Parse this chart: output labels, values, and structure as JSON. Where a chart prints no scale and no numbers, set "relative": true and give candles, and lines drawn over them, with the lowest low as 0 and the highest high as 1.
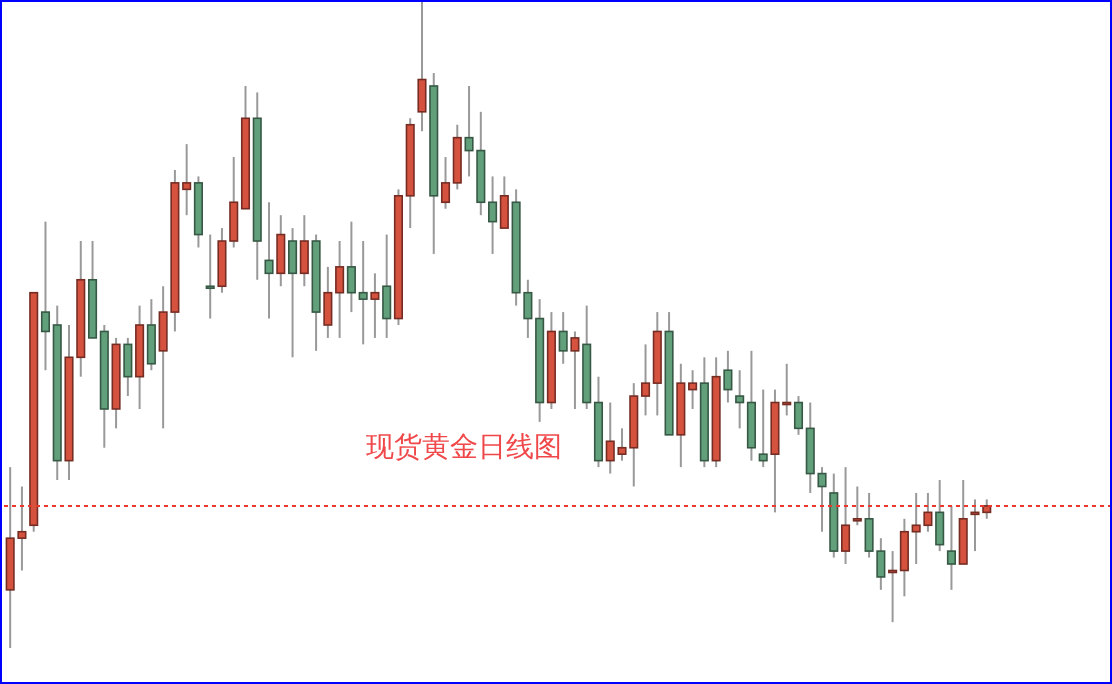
{
  "chart_data": {
    "type": "candlestick",
    "title": "现货黄金日线图",
    "relative": true,
    "categories": [
      null,
      null,
      null,
      null,
      null,
      null,
      null,
      null,
      null,
      null,
      null,
      null,
      null,
      null,
      null,
      null,
      null,
      null,
      null,
      null,
      null,
      null,
      null,
      null,
      null,
      null,
      null,
      null,
      null,
      null,
      null,
      null,
      null,
      null,
      null,
      null,
      null,
      null,
      null,
      null,
      null,
      null,
      null,
      null,
      null,
      null,
      null,
      null,
      null,
      null,
      null,
      null,
      null,
      null,
      null,
      null,
      null,
      null,
      null,
      null,
      null,
      null,
      null,
      null,
      null,
      null,
      null,
      null,
      null,
      null,
      null,
      null,
      null,
      null,
      null,
      null,
      null,
      null,
      null,
      null,
      null,
      null,
      null,
      null,
      null,
      null,
      null,
      null,
      null,
      null,
      null,
      null,
      null,
      null
    ],
    "ohlc": [
      [
        0.09,
        0.28,
        0,
        0.17
      ],
      [
        0.17,
        0.25,
        0.12,
        0.18
      ],
      [
        0.19,
        0.55,
        0.18,
        0.55
      ],
      [
        0.52,
        0.66,
        0.43,
        0.49
      ],
      [
        0.5,
        0.53,
        0.26,
        0.29
      ],
      [
        0.29,
        0.5,
        0.26,
        0.45
      ],
      [
        0.45,
        0.63,
        0.42,
        0.57
      ],
      [
        0.57,
        0.63,
        0.48,
        0.48
      ],
      [
        0.49,
        0.5,
        0.31,
        0.37
      ],
      [
        0.37,
        0.48,
        0.34,
        0.47
      ],
      [
        0.47,
        0.48,
        0.39,
        0.42
      ],
      [
        0.42,
        0.53,
        0.37,
        0.5
      ],
      [
        0.5,
        0.54,
        0.43,
        0.44
      ],
      [
        0.46,
        0.56,
        0.34,
        0.52
      ],
      [
        0.52,
        0.74,
        0.49,
        0.72
      ],
      [
        0.71,
        0.78,
        0.67,
        0.72
      ],
      [
        0.72,
        0.73,
        0.62,
        0.64
      ],
      [
        0.56,
        0.64,
        0.51,
        0.56
      ],
      [
        0.56,
        0.65,
        0.55,
        0.63
      ],
      [
        0.63,
        0.76,
        0.62,
        0.69
      ],
      [
        0.68,
        0.87,
        0.68,
        0.82
      ],
      [
        0.82,
        0.86,
        0.57,
        0.63
      ],
      [
        0.6,
        0.69,
        0.51,
        0.58
      ],
      [
        0.58,
        0.67,
        0.56,
        0.64
      ],
      [
        0.63,
        0.65,
        0.45,
        0.58
      ],
      [
        0.58,
        0.67,
        0.56,
        0.63
      ],
      [
        0.63,
        0.64,
        0.46,
        0.52
      ],
      [
        0.5,
        0.59,
        0.48,
        0.55
      ],
      [
        0.55,
        0.63,
        0.48,
        0.59
      ],
      [
        0.59,
        0.66,
        0.52,
        0.55
      ],
      [
        0.55,
        0.63,
        0.47,
        0.54
      ],
      [
        0.54,
        0.58,
        0.48,
        0.55
      ],
      [
        0.56,
        0.64,
        0.48,
        0.51
      ],
      [
        0.51,
        0.71,
        0.5,
        0.7
      ],
      [
        0.7,
        0.82,
        0.65,
        0.81
      ],
      [
        0.83,
        1,
        0.8,
        0.88
      ],
      [
        0.87,
        0.89,
        0.61,
        0.7
      ],
      [
        0.69,
        0.76,
        0.68,
        0.72
      ],
      [
        0.72,
        0.81,
        0.71,
        0.79
      ],
      [
        0.79,
        0.87,
        0.73,
        0.77
      ],
      [
        0.77,
        0.83,
        0.67,
        0.69
      ],
      [
        0.69,
        0.73,
        0.61,
        0.66
      ],
      [
        0.65,
        0.73,
        0.65,
        0.7
      ],
      [
        0.69,
        0.71,
        0.53,
        0.55
      ],
      [
        0.55,
        0.57,
        0.48,
        0.51
      ],
      [
        0.51,
        0.54,
        0.35,
        0.38
      ],
      [
        0.38,
        0.52,
        0.37,
        0.49
      ],
      [
        0.49,
        0.52,
        0.44,
        0.46
      ],
      [
        0.46,
        0.49,
        0.37,
        0.48
      ],
      [
        0.47,
        0.53,
        0.37,
        0.38
      ],
      [
        0.38,
        0.42,
        0.28,
        0.29
      ],
      [
        0.29,
        0.38,
        0.27,
        0.32
      ],
      [
        0.3,
        0.34,
        0.29,
        0.31
      ],
      [
        0.31,
        0.41,
        0.25,
        0.39
      ],
      [
        0.39,
        0.47,
        0.36,
        0.41
      ],
      [
        0.41,
        0.52,
        0.36,
        0.49
      ],
      [
        0.49,
        0.52,
        0.33,
        0.33
      ],
      [
        0.33,
        0.44,
        0.28,
        0.41
      ],
      [
        0.4,
        0.43,
        0.37,
        0.41
      ],
      [
        0.41,
        0.45,
        0.28,
        0.29
      ],
      [
        0.29,
        0.45,
        0.28,
        0.42
      ],
      [
        0.43,
        0.46,
        0.38,
        0.4
      ],
      [
        0.39,
        0.43,
        0.34,
        0.38
      ],
      [
        0.38,
        0.46,
        0.29,
        0.31
      ],
      [
        0.3,
        0.4,
        0.28,
        0.29
      ],
      [
        0.3,
        0.4,
        0.21,
        0.38
      ],
      [
        0.38,
        0.44,
        0.36,
        0.38
      ],
      [
        0.38,
        0.39,
        0.33,
        0.34
      ],
      [
        0.34,
        0.38,
        0.24,
        0.27
      ],
      [
        0.27,
        0.28,
        0.18,
        0.25
      ],
      [
        0.24,
        0.27,
        0.14,
        0.15
      ],
      [
        0.15,
        0.28,
        0.13,
        0.19
      ],
      [
        0.2,
        0.25,
        0.19,
        0.2
      ],
      [
        0.2,
        0.24,
        0.14,
        0.15
      ],
      [
        0.15,
        0.17,
        0.09,
        0.11
      ],
      [
        0.12,
        0.15,
        0.04,
        0.12
      ],
      [
        0.12,
        0.2,
        0.08,
        0.18
      ],
      [
        0.18,
        0.24,
        0.13,
        0.19
      ],
      [
        0.19,
        0.24,
        0.18,
        0.21
      ],
      [
        0.21,
        0.26,
        0.15,
        0.16
      ],
      [
        0.15,
        0.22,
        0.09,
        0.13
      ],
      [
        0.13,
        0.26,
        0.13,
        0.2
      ],
      [
        0.21,
        0.23,
        0.15,
        0.21
      ],
      [
        0.21,
        0.23,
        0.2,
        0.22
      ],
      null,
      null,
      null,
      null,
      null,
      null,
      null,
      null,
      null,
      null
    ],
    "colors": [
      "#d5523f",
      "#d5523f",
      "#d5523f",
      "#62a07c",
      "#62a07c",
      "#d5523f",
      "#d5523f",
      "#62a07c",
      "#62a07c",
      "#d5523f",
      "#62a07c",
      "#d5523f",
      "#62a07c",
      "#d5523f",
      "#d5523f",
      "#d5523f",
      "#62a07c",
      "#62a07c",
      "#d5523f",
      "#d5523f",
      "#d5523f",
      "#62a07c",
      "#62a07c",
      "#d5523f",
      "#62a07c",
      "#d5523f",
      "#62a07c",
      "#d5523f",
      "#d5523f",
      "#62a07c",
      "#62a07c",
      "#d5523f",
      "#62a07c",
      "#d5523f",
      "#d5523f",
      "#d5523f",
      "#62a07c",
      "#d5523f",
      "#d5523f",
      "#62a07c",
      "#62a07c",
      "#62a07c",
      "#d5523f",
      "#62a07c",
      "#62a07c",
      "#62a07c",
      "#d5523f",
      "#62a07c",
      "#d5523f",
      "#62a07c",
      "#62a07c",
      "#d5523f",
      "#d5523f",
      "#d5523f",
      "#d5523f",
      "#d5523f",
      "#62a07c",
      "#d5523f",
      "#d5523f",
      "#62a07c",
      "#d5523f",
      "#62a07c",
      "#62a07c",
      "#62a07c",
      "#62a07c",
      "#d5523f",
      "#d5523f",
      "#62a07c",
      "#62a07c",
      "#62a07c",
      "#62a07c",
      "#d5523f",
      "#d5523f",
      "#62a07c",
      "#62a07c",
      "#d5523f",
      "#d5523f",
      "#d5523f",
      "#d5523f",
      "#62a07c",
      "#62a07c",
      "#d5523f",
      "#d5523f",
      "#d5523f",
      null,
      null,
      null,
      null,
      null,
      null,
      null,
      null,
      null,
      null
    ],
    "ref_lines": [
      {
        "axis": "y",
        "value": 0.22,
        "color": "#e8392c",
        "line_style": "dotted"
      }
    ]
  }
}
